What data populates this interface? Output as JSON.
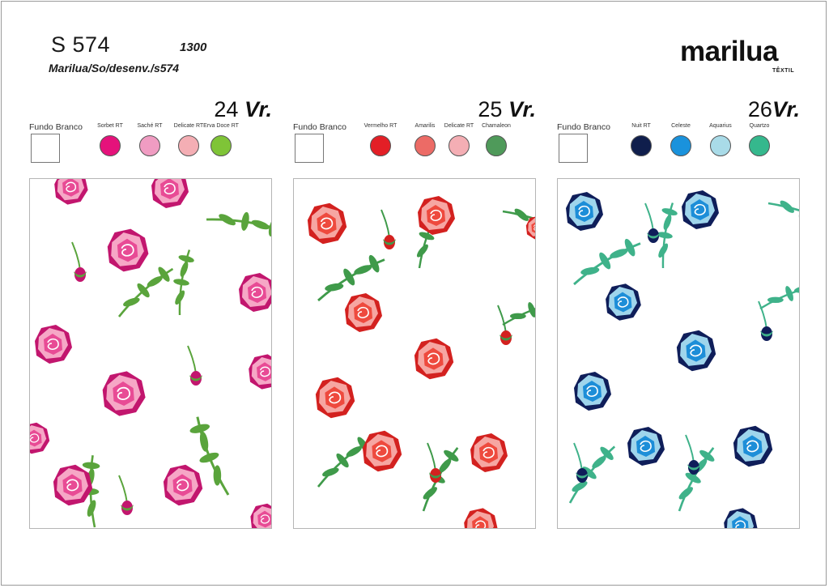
{
  "header": {
    "code": "S 574",
    "number": "1300",
    "path": "Marilua/So/desenv./s574"
  },
  "logo": {
    "word": "marilua",
    "sub": "TÊXTIL"
  },
  "variants": [
    {
      "num": "24",
      "suffix": "Vr.",
      "background_label": "Fundo Branco",
      "leaf": "#5aa43c",
      "rose": {
        "dark": "#c2166e",
        "mid": "#e84b95",
        "light": "#f6a7c6"
      },
      "colors": [
        {
          "name": "Sorbet RT",
          "hex": "#e5127b"
        },
        {
          "name": "Saché RT",
          "hex": "#f09cc2"
        },
        {
          "name": "Delicate RT",
          "hex": "#f4aeb4"
        },
        {
          "name": "Erva Doce RT",
          "hex": "#7fc437"
        }
      ]
    },
    {
      "num": "25",
      "suffix": "Vr.",
      "background_label": "Fundo Branco",
      "leaf": "#3f9a4a",
      "rose": {
        "dark": "#d3211f",
        "mid": "#ee4a3e",
        "light": "#f6a6a2"
      },
      "colors": [
        {
          "name": "Vermelho RT",
          "hex": "#e31f26"
        },
        {
          "name": "Amarilis",
          "hex": "#ec6b66"
        },
        {
          "name": "Delicate RT",
          "hex": "#f4aeb4"
        },
        {
          "name": "Chamaleon",
          "hex": "#4f9a5a"
        }
      ]
    },
    {
      "num": "26",
      "suffix": "Vr.",
      "background_label": "Fundo Branco",
      "leaf": "#3fb28a",
      "rose": {
        "dark": "#0f1e5a",
        "mid": "#1d8ed8",
        "light": "#9fd5ec"
      },
      "colors": [
        {
          "name": "Nuit RT",
          "hex": "#0f1e4c"
        },
        {
          "name": "Celeste",
          "hex": "#1a92dc"
        },
        {
          "name": "Aquarius",
          "hex": "#a9dbe8"
        },
        {
          "name": "Quartzo",
          "hex": "#35b88d"
        }
      ]
    }
  ]
}
